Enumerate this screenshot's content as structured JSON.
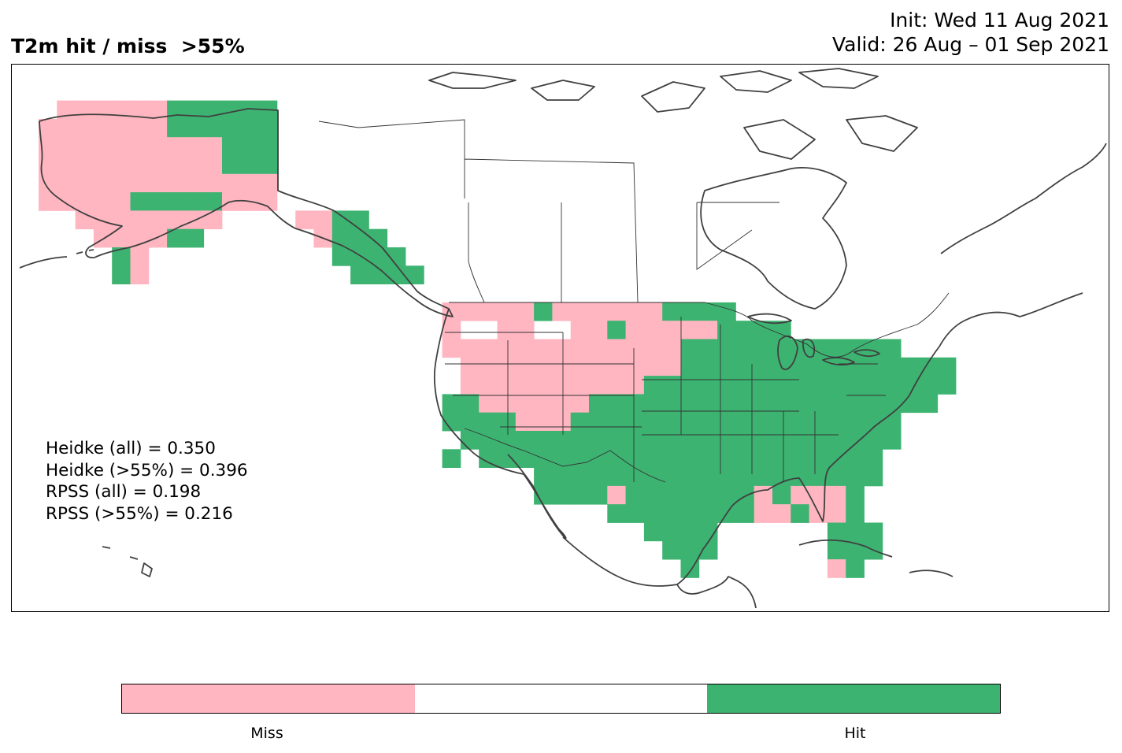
{
  "header": {
    "title": "T2m hit / miss  >55%",
    "init": "Init: Wed 11 Aug 2021",
    "valid": "Valid: 26 Aug – 01 Sep 2021"
  },
  "stats": {
    "heidke_all": "Heidke (all) = 0.350",
    "heidke_55": "Heidke (>55%) = 0.396",
    "rpss_all": "RPSS (all) = 0.198",
    "rpss_55": "RPSS (>55%) = 0.216"
  },
  "legend": {
    "miss_label": "Miss",
    "hit_label": "Hit",
    "colors": {
      "miss": "#ffb6c1",
      "neutral": "#ffffff",
      "hit": "#3cb371"
    }
  },
  "map": {
    "grid_rows": [
      {
        "r": 2,
        "runs": [
          [
            1,
            6,
            "M"
          ],
          [
            7,
            12,
            "H"
          ]
        ]
      },
      {
        "r": 3,
        "runs": [
          [
            0,
            6,
            "M"
          ],
          [
            7,
            12,
            "H"
          ]
        ]
      },
      {
        "r": 4,
        "runs": [
          [
            0,
            6,
            "M"
          ],
          [
            7,
            9,
            "M"
          ],
          [
            10,
            12,
            "H"
          ]
        ]
      },
      {
        "r": 5,
        "runs": [
          [
            0,
            9,
            "M"
          ],
          [
            10,
            12,
            "H"
          ]
        ]
      },
      {
        "r": 6,
        "runs": [
          [
            0,
            12,
            "M"
          ]
        ]
      },
      {
        "r": 7,
        "runs": [
          [
            0,
            4,
            "M"
          ],
          [
            5,
            9,
            "H"
          ],
          [
            10,
            12,
            "M"
          ]
        ]
      },
      {
        "r": 8,
        "runs": [
          [
            2,
            9,
            "M"
          ],
          [
            14,
            15,
            "M"
          ],
          [
            16,
            17,
            "H"
          ]
        ]
      },
      {
        "r": 9,
        "runs": [
          [
            3,
            6,
            "M"
          ],
          [
            7,
            8,
            "H"
          ],
          [
            15,
            15,
            "M"
          ],
          [
            16,
            18,
            "H"
          ]
        ]
      },
      {
        "r": 10,
        "runs": [
          [
            4,
            4,
            "H"
          ],
          [
            5,
            5,
            "M"
          ],
          [
            16,
            19,
            "H"
          ]
        ]
      },
      {
        "r": 11,
        "runs": [
          [
            4,
            4,
            "H"
          ],
          [
            5,
            5,
            "M"
          ],
          [
            17,
            20,
            "H"
          ]
        ]
      },
      {
        "r": 13,
        "runs": [
          [
            22,
            26,
            "M"
          ],
          [
            27,
            27,
            "H"
          ],
          [
            28,
            33,
            "M"
          ],
          [
            34,
            37,
            "H"
          ]
        ]
      },
      {
        "r": 14,
        "runs": [
          [
            22,
            22,
            "M"
          ],
          [
            25,
            26,
            "M"
          ],
          [
            29,
            30,
            "M"
          ],
          [
            31,
            31,
            "H"
          ],
          [
            32,
            36,
            "M"
          ],
          [
            37,
            40,
            "H"
          ]
        ]
      },
      {
        "r": 15,
        "runs": [
          [
            22,
            26,
            "M"
          ],
          [
            27,
            34,
            "M"
          ],
          [
            35,
            42,
            "H"
          ],
          [
            43,
            46,
            "H"
          ]
        ]
      },
      {
        "r": 16,
        "runs": [
          [
            23,
            26,
            "M"
          ],
          [
            27,
            30,
            "M"
          ],
          [
            31,
            32,
            "M"
          ],
          [
            33,
            34,
            "M"
          ],
          [
            35,
            42,
            "H"
          ],
          [
            43,
            49,
            "H"
          ]
        ]
      },
      {
        "r": 17,
        "runs": [
          [
            23,
            30,
            "M"
          ],
          [
            31,
            32,
            "M"
          ],
          [
            33,
            42,
            "H"
          ],
          [
            43,
            49,
            "H"
          ]
        ]
      },
      {
        "r": 18,
        "runs": [
          [
            22,
            23,
            "H"
          ],
          [
            24,
            26,
            "M"
          ],
          [
            27,
            29,
            "M"
          ],
          [
            30,
            34,
            "H"
          ],
          [
            35,
            42,
            "H"
          ],
          [
            43,
            48,
            "H"
          ]
        ]
      },
      {
        "r": 19,
        "runs": [
          [
            22,
            25,
            "H"
          ],
          [
            26,
            28,
            "M"
          ],
          [
            29,
            34,
            "H"
          ],
          [
            35,
            46,
            "H"
          ]
        ]
      },
      {
        "r": 20,
        "runs": [
          [
            23,
            34,
            "H"
          ],
          [
            35,
            46,
            "H"
          ]
        ]
      },
      {
        "r": 21,
        "runs": [
          [
            22,
            22,
            "H"
          ],
          [
            24,
            26,
            "H"
          ],
          [
            27,
            34,
            "H"
          ],
          [
            35,
            45,
            "H"
          ]
        ]
      },
      {
        "r": 22,
        "runs": [
          [
            27,
            34,
            "H"
          ],
          [
            35,
            45,
            "H"
          ]
        ]
      },
      {
        "r": 23,
        "runs": [
          [
            27,
            30,
            "H"
          ],
          [
            31,
            31,
            "M"
          ],
          [
            32,
            38,
            "H"
          ],
          [
            39,
            39,
            "M"
          ],
          [
            40,
            40,
            "H"
          ],
          [
            41,
            43,
            "M"
          ],
          [
            44,
            44,
            "H"
          ]
        ]
      },
      {
        "r": 24,
        "runs": [
          [
            31,
            38,
            "H"
          ],
          [
            39,
            40,
            "M"
          ],
          [
            41,
            41,
            "H"
          ],
          [
            42,
            43,
            "M"
          ],
          [
            44,
            44,
            "H"
          ]
        ]
      },
      {
        "r": 25,
        "runs": [
          [
            33,
            36,
            "H"
          ],
          [
            43,
            45,
            "H"
          ]
        ]
      },
      {
        "r": 26,
        "runs": [
          [
            34,
            36,
            "H"
          ],
          [
            43,
            45,
            "H"
          ]
        ]
      },
      {
        "r": 27,
        "runs": [
          [
            35,
            35,
            "H"
          ],
          [
            43,
            43,
            "M"
          ],
          [
            44,
            44,
            "H"
          ]
        ]
      }
    ]
  }
}
